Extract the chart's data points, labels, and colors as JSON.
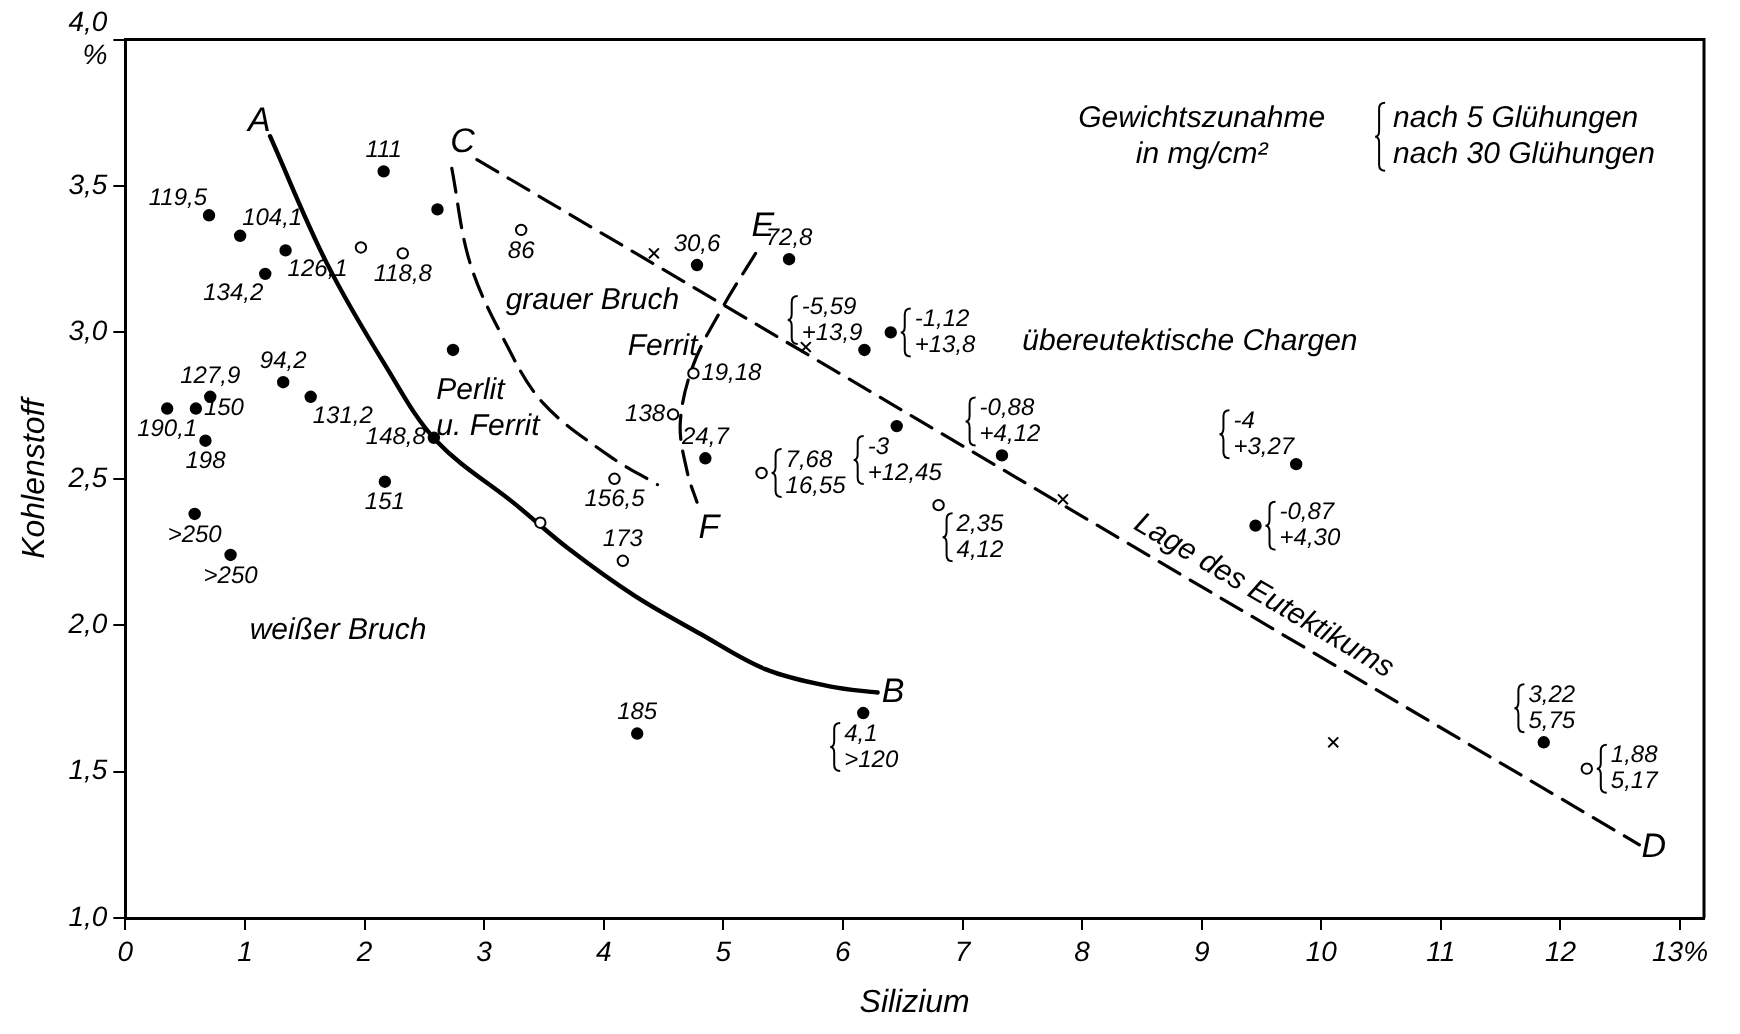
{
  "chart_data": {
    "type": "scatter",
    "xlabel": "Silizium",
    "ylabel": "Kohlenstoff",
    "xlim": [
      0,
      13.2
    ],
    "ylim": [
      1,
      4
    ],
    "xticks": [
      0,
      1,
      2,
      3,
      4,
      5,
      6,
      7,
      8,
      9,
      10,
      11,
      12,
      {
        "value": 13,
        "label": "13%"
      }
    ],
    "yticks": [
      {
        "value": 1,
        "label": "1,0"
      },
      {
        "value": 1.5,
        "label": "1,5"
      },
      {
        "value": 2,
        "label": "2,0"
      },
      {
        "value": 2.5,
        "label": "2,5"
      },
      {
        "value": 3,
        "label": "3,0"
      },
      {
        "value": 3.5,
        "label": "3,5"
      },
      {
        "value": 4,
        "label": "4,0\n%"
      }
    ],
    "grid": false,
    "legend": false,
    "series": [
      {
        "marker": "circle",
        "color": "#000000",
        "x": [
          0.7,
          0.96,
          1.34,
          1.17,
          2.16,
          2.61,
          2.74,
          1.32,
          0.71,
          1.55,
          0.35,
          0.59,
          0.67,
          2.58,
          2.17,
          0.58,
          0.88,
          4.28,
          6.17,
          4.78,
          5.55,
          6.18,
          6.4,
          4.85,
          6.45,
          7.33,
          9.79,
          9.45,
          11.86
        ],
        "values": [
          3.4,
          3.33,
          3.28,
          3.2,
          3.55,
          3.42,
          2.94,
          2.83,
          2.78,
          2.78,
          2.74,
          2.74,
          2.63,
          2.64,
          2.49,
          2.38,
          2.24,
          1.63,
          1.7,
          3.23,
          3.25,
          2.94,
          3.0,
          2.57,
          2.68,
          2.58,
          2.55,
          2.34,
          1.6
        ]
      },
      {
        "marker": "circle-open",
        "color": "#000000",
        "x": [
          1.97,
          2.32,
          3.31,
          3.47,
          4.09,
          4.16,
          4.75,
          4.58,
          5.32,
          6.8,
          12.22
        ],
        "values": [
          3.29,
          3.27,
          3.35,
          2.35,
          2.5,
          2.22,
          2.86,
          2.72,
          2.52,
          2.41,
          1.51
        ]
      },
      {
        "marker": "cross",
        "color": "#000000",
        "x": [
          4.42,
          5.69,
          7.84,
          10.1
        ],
        "values": [
          3.27,
          2.95,
          2.43,
          1.6
        ]
      },
      {
        "type": "line",
        "line_style": "solid",
        "color": "#000000",
        "x": [
          1.21,
          1.68,
          2.17,
          2.6,
          3.27,
          3.71,
          4.26,
          4.81,
          5.35,
          5.9,
          6.29
        ],
        "values": [
          3.67,
          3.24,
          2.89,
          2.63,
          2.41,
          2.26,
          2.1,
          1.97,
          1.85,
          1.79,
          1.77
        ]
      },
      {
        "type": "line",
        "line_style": "dashed",
        "color": "#000000",
        "x": [
          2.94,
          12.66
        ],
        "values": [
          3.59,
          1.25
        ]
      },
      {
        "type": "line",
        "line_style": "dashed",
        "color": "#000000",
        "x": [
          5.27,
          5.0,
          4.75,
          4.64,
          4.7,
          4.78
        ],
        "values": [
          3.27,
          3.09,
          2.89,
          2.69,
          2.52,
          2.42
        ]
      },
      {
        "type": "line",
        "line_style": "dashed",
        "color": "#000000",
        "x": [
          2.73,
          2.88,
          3.16,
          3.49,
          4.04,
          4.45
        ],
        "values": [
          3.56,
          3.24,
          2.98,
          2.76,
          2.58,
          2.48
        ]
      }
    ],
    "annotations": [
      {
        "text": "119,5",
        "x": 0.7,
        "y": 3.4
      },
      {
        "text": "104,1",
        "x": 0.96,
        "y": 3.33
      },
      {
        "text": "126,1",
        "x": 1.34,
        "y": 3.28
      },
      {
        "text": "134,2",
        "x": 1.17,
        "y": 3.2
      },
      {
        "text": "111",
        "x": 2.16,
        "y": 3.55
      },
      {
        "text": "94,2",
        "x": 1.32,
        "y": 2.83
      },
      {
        "text": "127,9",
        "x": 0.71,
        "y": 2.78
      },
      {
        "text": "131,2",
        "x": 1.55,
        "y": 2.78
      },
      {
        "text": "190,1",
        "x": 0.35,
        "y": 2.74
      },
      {
        "text": "150",
        "x": 0.59,
        "y": 2.74
      },
      {
        "text": "198",
        "x": 0.67,
        "y": 2.63
      },
      {
        "text": "148,8",
        "x": 2.58,
        "y": 2.64
      },
      {
        "text": "151",
        "x": 2.17,
        "y": 2.49
      },
      {
        "text": ">250",
        "x": 0.58,
        "y": 2.38
      },
      {
        "text": ">250",
        "x": 0.88,
        "y": 2.24
      },
      {
        "text": "185",
        "x": 4.28,
        "y": 1.63
      },
      {
        "text": "4,1\n>120",
        "x": 6.17,
        "y": 1.7
      },
      {
        "text": "30,6",
        "x": 4.78,
        "y": 3.23
      },
      {
        "text": "72,8",
        "x": 5.55,
        "y": 3.25
      },
      {
        "text": "-5,59\n+13,9",
        "x": 6.18,
        "y": 2.94
      },
      {
        "text": "-1,12\n+13,8",
        "x": 6.4,
        "y": 3.0
      },
      {
        "text": "24,7",
        "x": 4.85,
        "y": 2.57
      },
      {
        "text": "-3\n+12,45",
        "x": 6.45,
        "y": 2.68
      },
      {
        "text": "-0,88\n+4,12",
        "x": 7.33,
        "y": 2.58
      },
      {
        "text": "-4\n+3,27",
        "x": 9.79,
        "y": 2.55
      },
      {
        "text": "-0,87\n+4,30",
        "x": 9.45,
        "y": 2.34
      },
      {
        "text": "3,22\n5,75",
        "x": 11.86,
        "y": 1.6
      },
      {
        "text": "118,8",
        "x": 2.32,
        "y": 3.27
      },
      {
        "text": "86",
        "x": 3.31,
        "y": 3.35
      },
      {
        "text": "156,5",
        "x": 4.09,
        "y": 2.5
      },
      {
        "text": "173",
        "x": 4.16,
        "y": 2.22
      },
      {
        "text": "19,18",
        "x": 4.75,
        "y": 2.86
      },
      {
        "text": "138",
        "x": 4.58,
        "y": 2.72
      },
      {
        "text": "7,68\n16,55",
        "x": 5.32,
        "y": 2.52
      },
      {
        "text": "2,35\n4,12",
        "x": 6.8,
        "y": 2.41
      },
      {
        "text": "1,88\n5,17",
        "x": 12.22,
        "y": 1.51
      },
      "A",
      "B",
      "C",
      "D",
      "E",
      "F",
      "grauer Bruch",
      "Perlit\nu. Ferrit",
      "Ferrit",
      "weißer Bruch",
      "übereutektische Chargen",
      "Lage des Eutektikums",
      "Gewichtszunahme\nin mg/cm²",
      "nach 5 Glühungen\nnach 30 Glühungen"
    ]
  }
}
